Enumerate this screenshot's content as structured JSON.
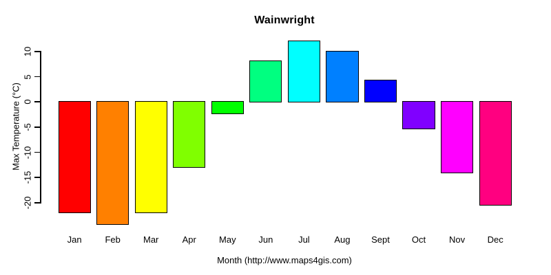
{
  "chart_data": {
    "type": "bar",
    "title": "Wainwright",
    "xlabel": "Month (http://www.maps4gis.com)",
    "ylabel": "Max Temperature (°C)",
    "categories": [
      "Jan",
      "Feb",
      "Mar",
      "Apr",
      "May",
      "Jun",
      "Jul",
      "Aug",
      "Sept",
      "Oct",
      "Nov",
      "Dec"
    ],
    "values": [
      -21.9,
      -24.3,
      -22,
      -12.9,
      -2.3,
      8.1,
      12.1,
      10,
      4.3,
      -5.3,
      -14,
      -20.4
    ],
    "bar_colors": [
      "#FF0000",
      "#FF8000",
      "#FFFF00",
      "#80FF00",
      "#00FF00",
      "#00FF80",
      "#00FFFF",
      "#0080FF",
      "#0000FF",
      "#8000FF",
      "#FF00FF",
      "#FF0080"
    ],
    "yticks": [
      10,
      5,
      0,
      -5,
      -10,
      -15,
      -20
    ],
    "ylim": [
      -24.5,
      12.5
    ],
    "grid": false,
    "legend_position": "none",
    "axis_color": "#000000",
    "text_color": "#000000",
    "background_color": "#FFFFFF"
  }
}
